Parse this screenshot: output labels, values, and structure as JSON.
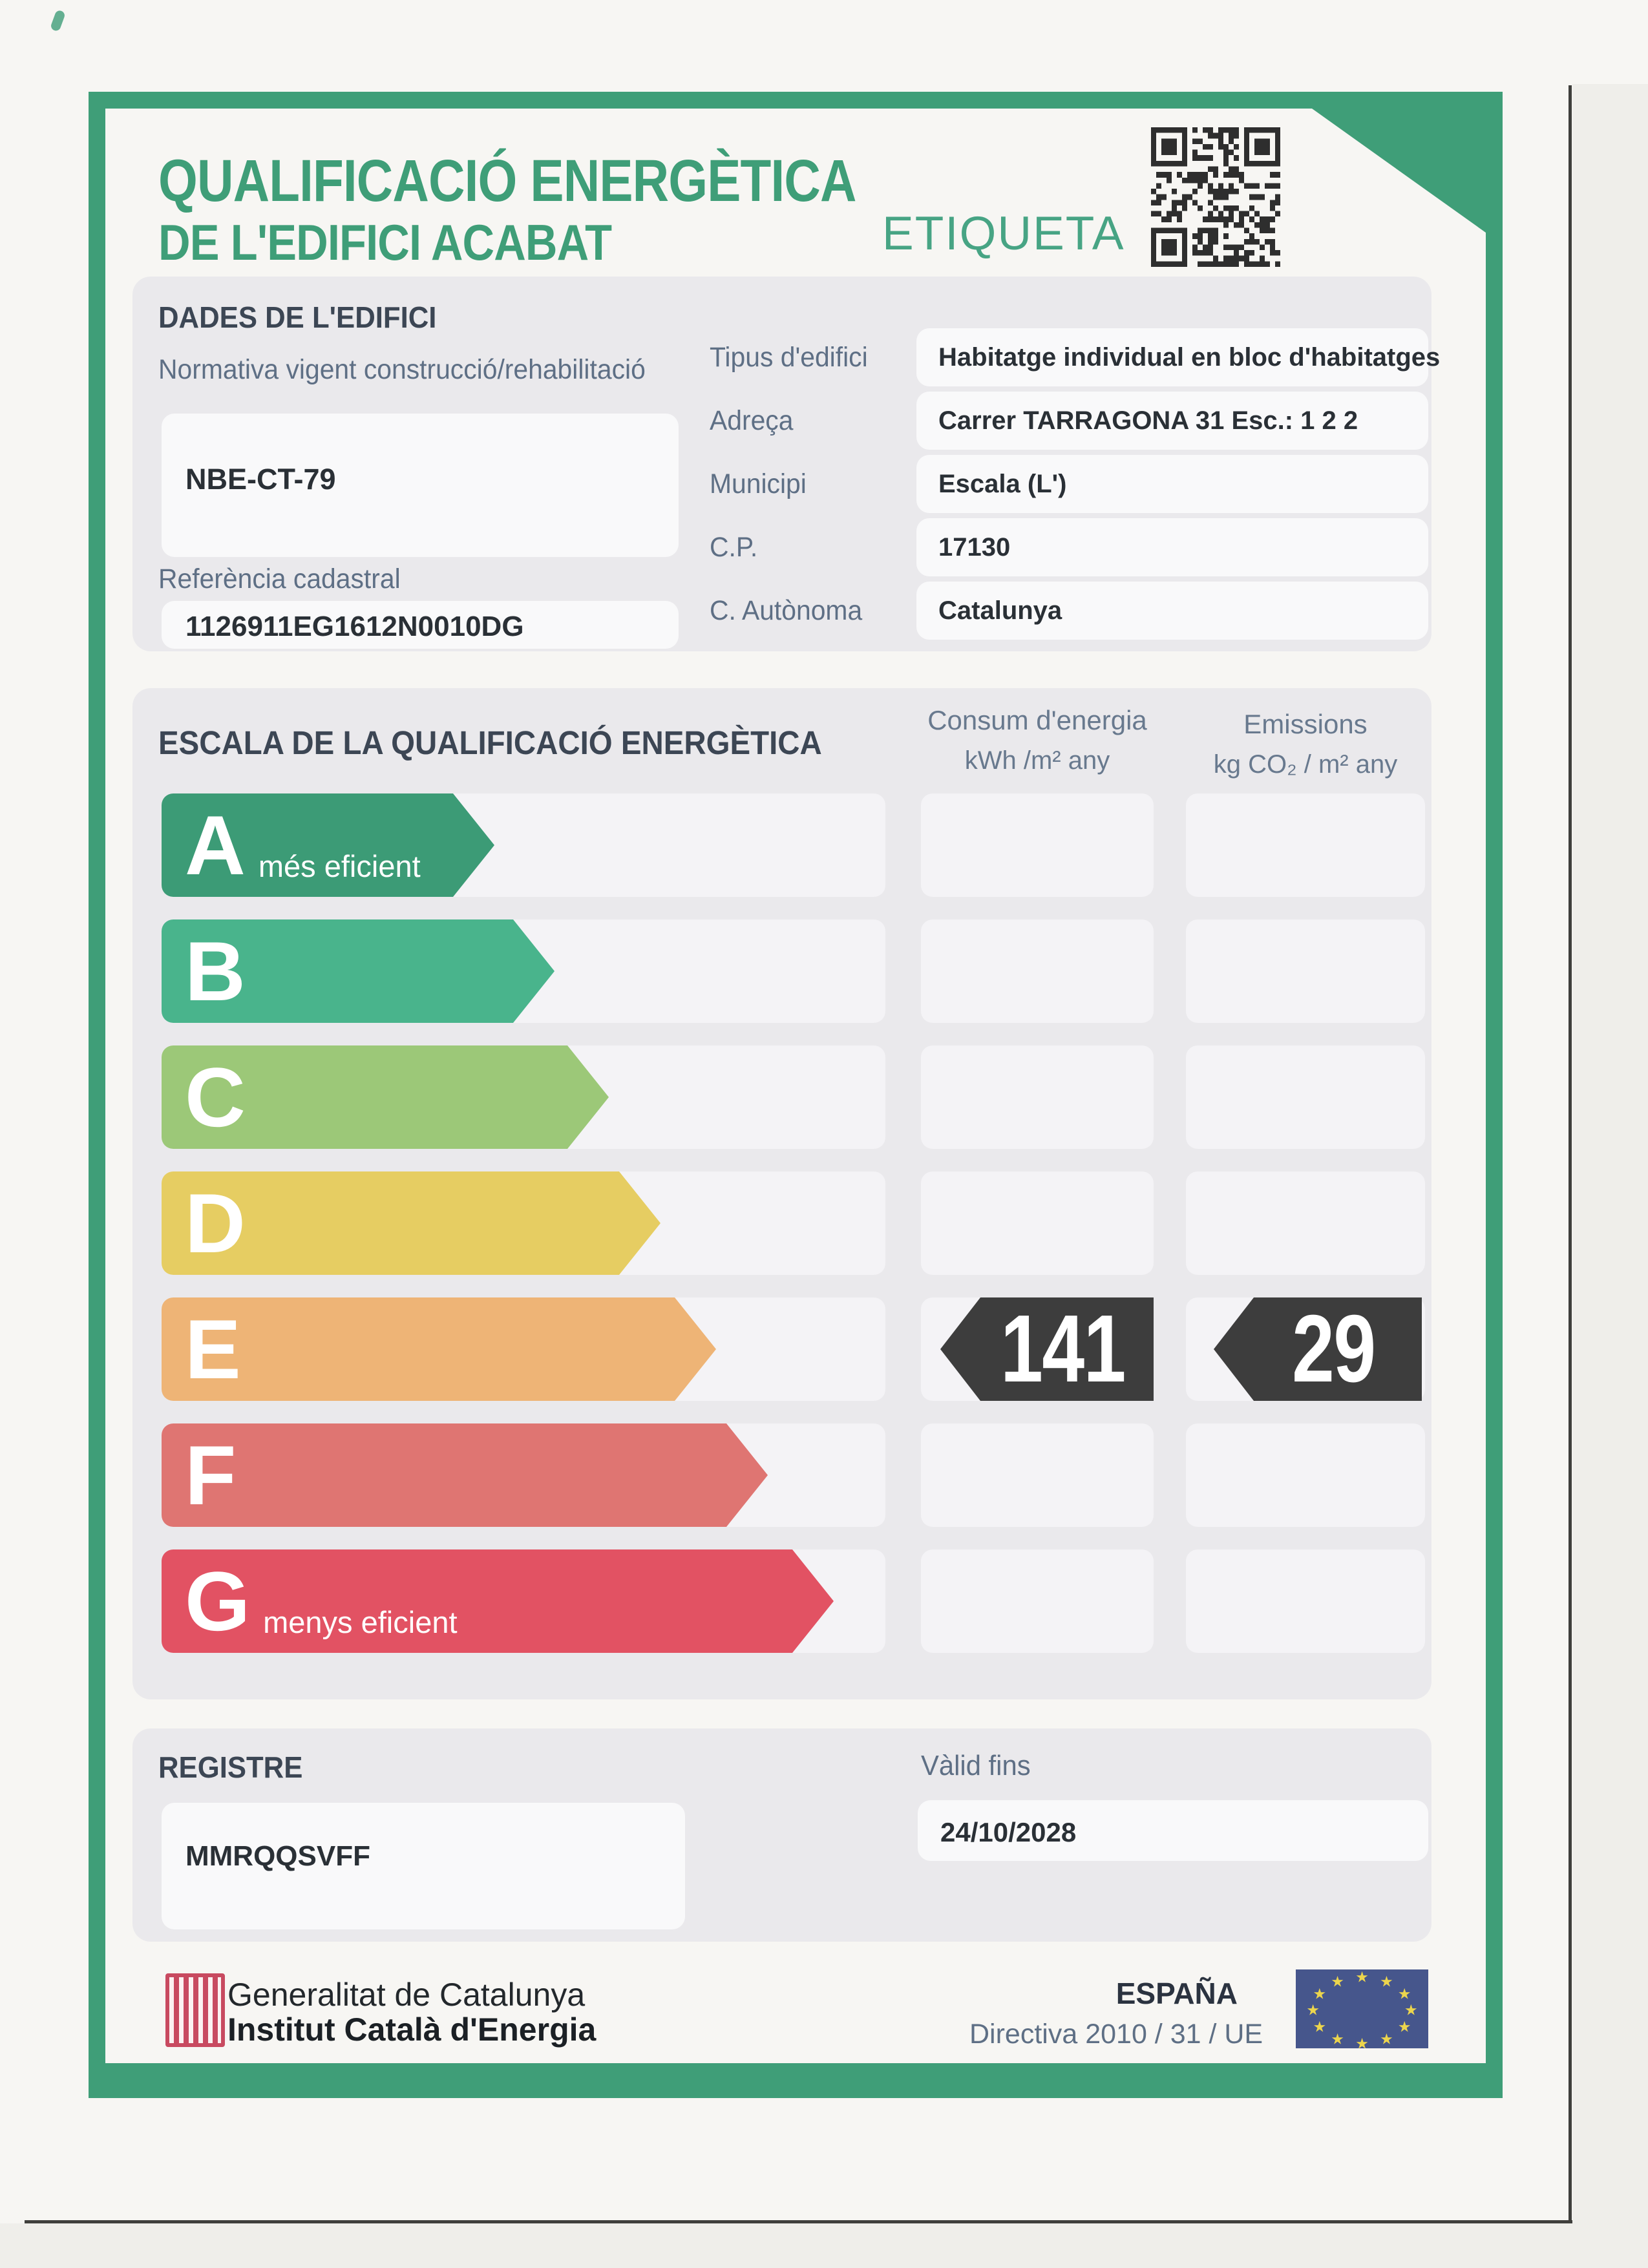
{
  "document": {
    "title_line1": "QUALIFICACIÓ ENERGÈTICA",
    "title_line2": "DE L'EDIFICI ACABAT",
    "etiqueta": "ETIQUETA"
  },
  "dades": {
    "heading": "DADES DE L'EDIFICI",
    "normativa_label": "Normativa vigent construcció/rehabilitació",
    "normativa_value": "NBE-CT-79",
    "referencia_label": "Referència cadastral",
    "referencia_value": "1126911EG1612N0010DG",
    "fields": [
      {
        "label": "Tipus d'edifici",
        "value": "Habitatge individual en bloc d'habitatges"
      },
      {
        "label": "Adreça",
        "value": "Carrer TARRAGONA 31 Esc.: 1 2 2"
      },
      {
        "label": "Municipi",
        "value": "Escala (L')"
      },
      {
        "label": "C.P.",
        "value": "17130"
      },
      {
        "label": "C. Autònoma",
        "value": "Catalunya"
      }
    ]
  },
  "escala": {
    "heading": "ESCALA DE LA QUALIFICACIÓ ENERGÈTICA",
    "consum_header": "Consum d'energia",
    "consum_units": "kWh /m² any",
    "emissions_header": "Emissions",
    "emissions_units": "kg CO₂ / m² any",
    "bands": [
      {
        "letter": "A",
        "note": "més eficient",
        "color": "#3c9b76"
      },
      {
        "letter": "B",
        "color": "#49b48c"
      },
      {
        "letter": "C",
        "color": "#9cc878"
      },
      {
        "letter": "D",
        "color": "#e6cd62"
      },
      {
        "letter": "E",
        "color": "#eeb476"
      },
      {
        "letter": "F",
        "color": "#df7572"
      },
      {
        "letter": "G",
        "note": "menys eficient",
        "color": "#e25263"
      }
    ],
    "rating": {
      "band": "E",
      "consum_value": "141",
      "emissions_value": "29"
    }
  },
  "registre": {
    "heading": "REGISTRE",
    "value": "MMRQQSVFF",
    "valid_label": "Vàlid fins",
    "valid_value": "24/10/2028"
  },
  "footer": {
    "org_line1": "Generalitat de Catalunya",
    "org_line2": "Institut Català d'Energia",
    "country": "ESPAÑA",
    "directive": "Directiva 2010 / 31 / UE"
  },
  "colors": {
    "frame_green": "#3f9e78",
    "rating_tag": "#3d3d3d",
    "eu_flag_blue": "#46568c",
    "senyera_red": "#c84a60"
  }
}
